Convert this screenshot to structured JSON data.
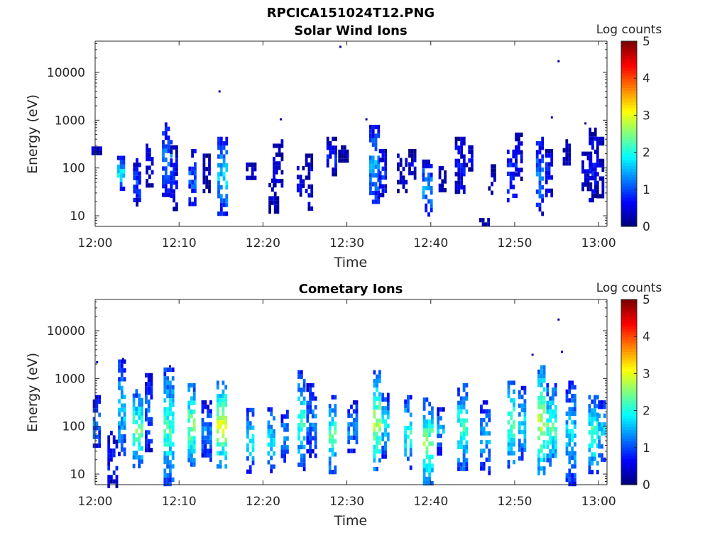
{
  "figure_title": "RPCICA151024T12.PNG",
  "colormap": [
    "#00007f",
    "#0000ff",
    "#007fff",
    "#00ffff",
    "#7fff7f",
    "#ffff00",
    "#ff7f00",
    "#ff0000",
    "#7f0000"
  ],
  "chart_data": [
    {
      "type": "heatmap",
      "title": "Solar Wind Ions",
      "xlabel": "Time",
      "ylabel": "Energy (eV)",
      "x_ticks": [
        "12:00",
        "12:10",
        "12:20",
        "12:30",
        "12:40",
        "12:50",
        "13:00"
      ],
      "x_tick_minutes": [
        0,
        10,
        20,
        30,
        40,
        50,
        60
      ],
      "xlim_minutes": [
        0,
        61
      ],
      "y_scale": "log",
      "y_ticks": [
        "10",
        "100",
        "1000",
        "10000"
      ],
      "y_tick_values": [
        10,
        100,
        1000,
        10000
      ],
      "ylim": [
        6,
        45000
      ],
      "colorbar": {
        "label": "Log counts",
        "ticks": [
          "0",
          "1",
          "2",
          "3",
          "4",
          "5"
        ],
        "range": [
          0,
          5
        ]
      },
      "bursts": [
        {
          "t": 0.2,
          "emin": 200,
          "emax": 350,
          "level": 0.3
        },
        {
          "t": 3.1,
          "emin": 35,
          "emax": 180,
          "level": 1.6
        },
        {
          "t": 5.0,
          "emin": 18,
          "emax": 160,
          "level": 0.8
        },
        {
          "t": 6.5,
          "emin": 40,
          "emax": 400,
          "level": 0.4
        },
        {
          "t": 8.6,
          "emin": 30,
          "emax": 900,
          "level": 1.1
        },
        {
          "t": 9.4,
          "emin": 12,
          "emax": 300,
          "level": 0.6
        },
        {
          "t": 11.6,
          "emin": 18,
          "emax": 250,
          "level": 1.0
        },
        {
          "t": 13.3,
          "emin": 30,
          "emax": 200,
          "level": 0.3
        },
        {
          "t": 15.2,
          "emin": 12,
          "emax": 450,
          "level": 1.5
        },
        {
          "t": 18.6,
          "emin": 60,
          "emax": 130,
          "level": 0.3
        },
        {
          "t": 21.3,
          "emin": 12,
          "emax": 60,
          "level": 0.2
        },
        {
          "t": 21.8,
          "emin": 40,
          "emax": 400,
          "level": 0.4
        },
        {
          "t": 24.5,
          "emin": 25,
          "emax": 110,
          "level": 0.5
        },
        {
          "t": 25.5,
          "emin": 15,
          "emax": 200,
          "level": 0.3
        },
        {
          "t": 28.2,
          "emin": 80,
          "emax": 450,
          "level": 0.6
        },
        {
          "t": 29.6,
          "emin": 150,
          "emax": 300,
          "level": 0.2
        },
        {
          "t": 33.3,
          "emin": 20,
          "emax": 800,
          "level": 1.3
        },
        {
          "t": 34.3,
          "emin": 25,
          "emax": 250,
          "level": 0.7
        },
        {
          "t": 36.6,
          "emin": 30,
          "emax": 200,
          "level": 0.3
        },
        {
          "t": 37.8,
          "emin": 60,
          "emax": 250,
          "level": 0.3
        },
        {
          "t": 39.6,
          "emin": 10,
          "emax": 150,
          "level": 1.2
        },
        {
          "t": 41.4,
          "emin": 35,
          "emax": 110,
          "level": 0.3
        },
        {
          "t": 43.5,
          "emin": 35,
          "emax": 450,
          "level": 0.6
        },
        {
          "t": 44.6,
          "emin": 90,
          "emax": 300,
          "level": 0.4
        },
        {
          "t": 46.4,
          "emin": 6,
          "emax": 9,
          "level": 0.2
        },
        {
          "t": 47.3,
          "emin": 30,
          "emax": 120,
          "level": 0.3
        },
        {
          "t": 49.7,
          "emin": 20,
          "emax": 300,
          "level": 0.8
        },
        {
          "t": 50.5,
          "emin": 60,
          "emax": 550,
          "level": 0.4
        },
        {
          "t": 53.0,
          "emin": 12,
          "emax": 450,
          "level": 1.1
        },
        {
          "t": 54.1,
          "emin": 30,
          "emax": 250,
          "level": 0.7
        },
        {
          "t": 56.2,
          "emin": 100,
          "emax": 400,
          "level": 0.2
        },
        {
          "t": 58.6,
          "emin": 35,
          "emax": 220,
          "level": 0.3
        },
        {
          "t": 59.3,
          "emin": 20,
          "emax": 700,
          "level": 0.6
        },
        {
          "t": 60.2,
          "emin": 25,
          "emax": 450,
          "level": 0.4
        }
      ],
      "points": [
        {
          "t": 14.7,
          "e": 4200,
          "level": 0.2
        },
        {
          "t": 22.0,
          "e": 1100,
          "level": 0.2
        },
        {
          "t": 29.1,
          "e": 36000,
          "level": 0.2
        },
        {
          "t": 32.2,
          "e": 1100,
          "level": 0.2
        },
        {
          "t": 54.3,
          "e": 1200,
          "level": 0.2
        },
        {
          "t": 55.1,
          "e": 18000,
          "level": 0.2
        },
        {
          "t": 58.3,
          "e": 900,
          "level": 0.2
        }
      ]
    },
    {
      "type": "heatmap",
      "title": "Cometary Ions",
      "xlabel": "Time",
      "ylabel": "Energy (eV)",
      "x_ticks": [
        "12:00",
        "12:10",
        "12:20",
        "12:30",
        "12:40",
        "12:50",
        "13:00"
      ],
      "x_tick_minutes": [
        0,
        10,
        20,
        30,
        40,
        50,
        60
      ],
      "xlim_minutes": [
        0,
        61
      ],
      "y_scale": "log",
      "y_ticks": [
        "10",
        "100",
        "1000",
        "10000"
      ],
      "y_tick_values": [
        10,
        100,
        1000,
        10000
      ],
      "ylim": [
        6,
        45000
      ],
      "colorbar": {
        "label": "Log counts",
        "ticks": [
          "0",
          "1",
          "2",
          "3",
          "4",
          "5"
        ],
        "range": [
          0,
          5
        ]
      },
      "bursts": [
        {
          "t": 0.2,
          "emin": 40,
          "emax": 450,
          "level": 1.2
        },
        {
          "t": 2.1,
          "emin": 6,
          "emax": 80,
          "level": 0.6
        },
        {
          "t": 3.2,
          "emin": 25,
          "emax": 2500,
          "level": 1.5
        },
        {
          "t": 5.1,
          "emin": 15,
          "emax": 600,
          "level": 2.1
        },
        {
          "t": 6.4,
          "emin": 30,
          "emax": 1300,
          "level": 1.0
        },
        {
          "t": 8.8,
          "emin": 6,
          "emax": 1700,
          "level": 1.9
        },
        {
          "t": 11.5,
          "emin": 15,
          "emax": 800,
          "level": 2.2
        },
        {
          "t": 13.3,
          "emin": 20,
          "emax": 350,
          "level": 1.2
        },
        {
          "t": 15.1,
          "emin": 15,
          "emax": 900,
          "level": 2.6
        },
        {
          "t": 18.5,
          "emin": 12,
          "emax": 300,
          "level": 1.7
        },
        {
          "t": 21.0,
          "emin": 12,
          "emax": 250,
          "level": 1.6
        },
        {
          "t": 22.6,
          "emin": 20,
          "emax": 220,
          "level": 1.3
        },
        {
          "t": 24.6,
          "emin": 12,
          "emax": 1500,
          "level": 1.8
        },
        {
          "t": 25.8,
          "emin": 25,
          "emax": 800,
          "level": 1.1
        },
        {
          "t": 28.3,
          "emin": 12,
          "emax": 450,
          "level": 2.0
        },
        {
          "t": 30.7,
          "emin": 30,
          "emax": 350,
          "level": 1.2
        },
        {
          "t": 33.6,
          "emin": 12,
          "emax": 1500,
          "level": 2.4
        },
        {
          "t": 34.6,
          "emin": 25,
          "emax": 500,
          "level": 1.7
        },
        {
          "t": 37.3,
          "emin": 15,
          "emax": 450,
          "level": 1.8
        },
        {
          "t": 39.7,
          "emin": 6,
          "emax": 400,
          "level": 2.2
        },
        {
          "t": 41.2,
          "emin": 30,
          "emax": 250,
          "level": 1.3
        },
        {
          "t": 43.8,
          "emin": 12,
          "emax": 800,
          "level": 1.9
        },
        {
          "t": 46.5,
          "emin": 10,
          "emax": 350,
          "level": 1.3
        },
        {
          "t": 49.6,
          "emin": 15,
          "emax": 900,
          "level": 2.1
        },
        {
          "t": 50.9,
          "emin": 20,
          "emax": 700,
          "level": 1.6
        },
        {
          "t": 53.2,
          "emin": 10,
          "emax": 1900,
          "level": 2.5
        },
        {
          "t": 54.4,
          "emin": 15,
          "emax": 800,
          "level": 2.0
        },
        {
          "t": 56.7,
          "emin": 6,
          "emax": 900,
          "level": 1.5
        },
        {
          "t": 59.4,
          "emin": 12,
          "emax": 450,
          "level": 2.0
        },
        {
          "t": 60.4,
          "emin": 20,
          "emax": 350,
          "level": 1.5
        }
      ],
      "points": [
        {
          "t": 0.1,
          "e": 2300,
          "level": 0.3
        },
        {
          "t": 3.2,
          "e": 2700,
          "level": 0.3
        },
        {
          "t": 8.8,
          "e": 1900,
          "level": 0.3
        },
        {
          "t": 52.0,
          "e": 3300,
          "level": 0.3
        },
        {
          "t": 55.1,
          "e": 18000,
          "level": 0.2
        },
        {
          "t": 55.5,
          "e": 3800,
          "level": 0.3
        }
      ]
    }
  ]
}
